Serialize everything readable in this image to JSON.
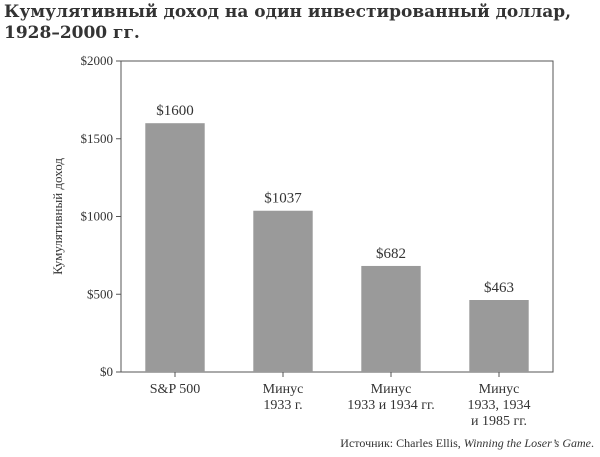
{
  "chart_data": {
    "type": "bar",
    "title_lines": [
      "Кумулятивный доход на один инвестированный доллар,",
      "1928–2000 гг."
    ],
    "ylabel": "Кумулятивный доход",
    "xlabel": "",
    "ylim": [
      0,
      2000
    ],
    "yticks": [
      0,
      500,
      1000,
      1500,
      2000
    ],
    "ytick_labels": [
      "$0",
      "$500",
      "$1000",
      "$1500",
      "$2000"
    ],
    "categories": [
      [
        "S&P 500"
      ],
      [
        "Минус",
        "1933 г."
      ],
      [
        "Минус",
        "1933 и 1934 гг."
      ],
      [
        "Минус",
        "1933, 1934",
        "и 1985 гг."
      ]
    ],
    "values": [
      1600,
      1037,
      682,
      463
    ],
    "value_labels": [
      "$1600",
      "$1037",
      "$682",
      "$463"
    ],
    "bar_color": "#9a9a9a",
    "grid": false,
    "legend": "none"
  },
  "source": {
    "prefix": "Источник: Charles Ellis, ",
    "title": "Winning the Loser’s Game",
    "suffix": "."
  }
}
